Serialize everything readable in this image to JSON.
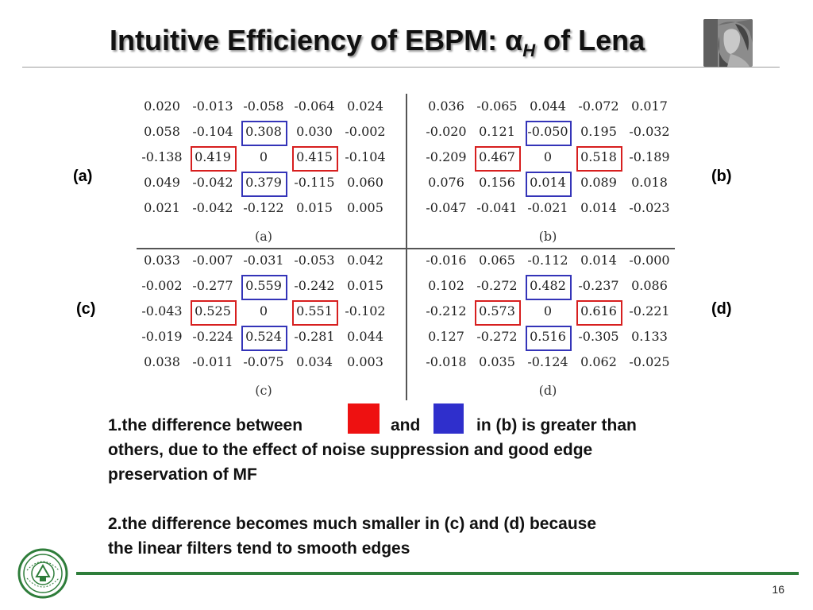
{
  "slide": {
    "title_main": "Intuitive Efficiency of EBPM: α",
    "title_sub": "H",
    "title_tail": " of Lena",
    "page_number": "16",
    "accent_color": "#2e7d3a"
  },
  "labels": {
    "a": "(a)",
    "b": "(b)",
    "c": "(c)",
    "d": "(d)"
  },
  "panels": {
    "a": {
      "caption": "(a)",
      "rows": [
        [
          "0.020",
          "-0.013",
          "-0.058",
          "-0.064",
          "0.024"
        ],
        [
          "0.058",
          "-0.104",
          "0.308",
          "0.030",
          "-0.002"
        ],
        [
          "-0.138",
          "0.419",
          "0",
          "0.415",
          "-0.104"
        ],
        [
          "0.049",
          "-0.042",
          "0.379",
          "-0.115",
          "0.060"
        ],
        [
          "0.021",
          "-0.042",
          "-0.122",
          "0.015",
          "0.005"
        ]
      ]
    },
    "b": {
      "caption": "(b)",
      "rows": [
        [
          "0.036",
          "-0.065",
          "0.044",
          "-0.072",
          "0.017"
        ],
        [
          "-0.020",
          "0.121",
          "-0.050",
          "0.195",
          "-0.032"
        ],
        [
          "-0.209",
          "0.467",
          "0",
          "0.518",
          "-0.189"
        ],
        [
          "0.076",
          "0.156",
          "0.014",
          "0.089",
          "0.018"
        ],
        [
          "-0.047",
          "-0.041",
          "-0.021",
          "0.014",
          "-0.023"
        ]
      ]
    },
    "c": {
      "caption": "(c)",
      "rows": [
        [
          "0.033",
          "-0.007",
          "-0.031",
          "-0.053",
          "0.042"
        ],
        [
          "-0.002",
          "-0.277",
          "0.559",
          "-0.242",
          "0.015"
        ],
        [
          "-0.043",
          "0.525",
          "0",
          "0.551",
          "-0.102"
        ],
        [
          "-0.019",
          "-0.224",
          "0.524",
          "-0.281",
          "0.044"
        ],
        [
          "0.038",
          "-0.011",
          "-0.075",
          "0.034",
          "0.003"
        ]
      ]
    },
    "d": {
      "caption": "(d)",
      "rows": [
        [
          "-0.016",
          "0.065",
          "-0.112",
          "0.014",
          "-0.000"
        ],
        [
          "0.102",
          "-0.272",
          "0.482",
          "-0.237",
          "0.086"
        ],
        [
          "-0.212",
          "0.573",
          "0",
          "0.616",
          "-0.221"
        ],
        [
          "0.127",
          "-0.272",
          "0.516",
          "-0.305",
          "0.133"
        ],
        [
          "-0.018",
          "0.035",
          "-0.124",
          "0.062",
          "-0.025"
        ]
      ]
    }
  },
  "highlight_colors": {
    "red": "#d71f1f",
    "blue": "#3434b8"
  },
  "notes": {
    "p1_before": "1.the difference between",
    "p1_and": "and",
    "p1_after": "in (b) is greater than",
    "p1_line2": "others, due to the effect of noise suppression and good edge",
    "p1_line3": "preservation of MF",
    "p2_line1": "2.the difference becomes much smaller in (c) and (d) because",
    "p2_line2": "the linear filters tend to smooth edges",
    "swatch_red": "#ee1111",
    "swatch_blue": "#2f2fcc"
  },
  "icons": {
    "thumbnail": "lena-image-thumbnail",
    "logo": "sun-yat-sen-university-seal"
  }
}
